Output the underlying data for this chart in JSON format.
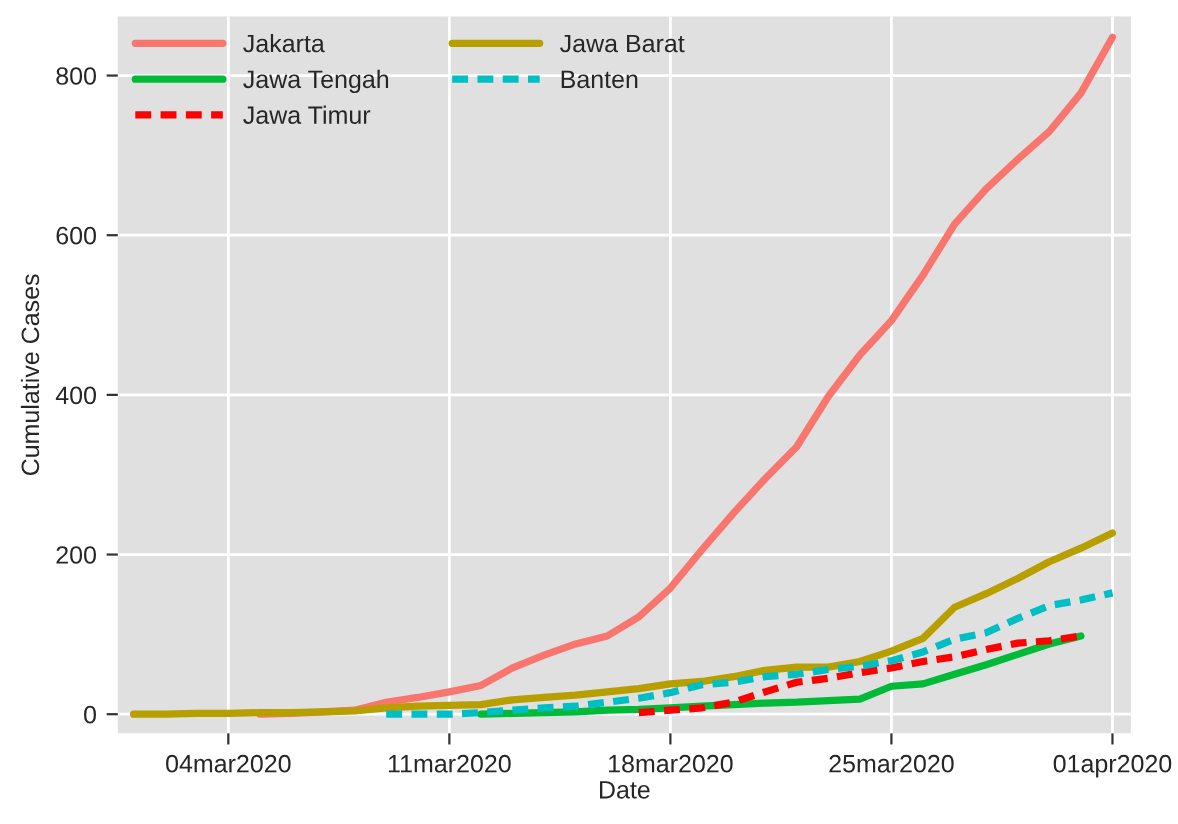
{
  "chart_data": {
    "type": "line",
    "xlabel": "Date",
    "ylabel": "Cumulative Cases",
    "xlim": [
      "2020-02-29T12:00",
      "2020-04-01T14:00"
    ],
    "ylim": [
      -24,
      874
    ],
    "xticks": [
      {
        "value": "2020-03-04",
        "label": "04mar2020"
      },
      {
        "value": "2020-03-11",
        "label": "11mar2020"
      },
      {
        "value": "2020-03-18",
        "label": "18mar2020"
      },
      {
        "value": "2020-03-25",
        "label": "25mar2020"
      },
      {
        "value": "2020-04-01",
        "label": "01apr2020"
      }
    ],
    "yticks": [
      0,
      200,
      400,
      600,
      800
    ],
    "grid": true,
    "legend": "top left",
    "series": [
      {
        "name": "Jakarta",
        "color": "#f8766d",
        "line_style": "solid",
        "x": [
          "2020-03-05",
          "2020-03-06",
          "2020-03-07",
          "2020-03-08",
          "2020-03-09",
          "2020-03-10",
          "2020-03-11",
          "2020-03-12",
          "2020-03-13",
          "2020-03-14",
          "2020-03-15",
          "2020-03-16",
          "2020-03-17",
          "2020-03-18",
          "2020-03-19",
          "2020-03-20",
          "2020-03-21",
          "2020-03-22",
          "2020-03-23",
          "2020-03-24",
          "2020-03-25",
          "2020-03-26",
          "2020-03-27",
          "2020-03-28",
          "2020-03-29",
          "2020-03-30",
          "2020-03-31",
          "2020-04-01"
        ],
        "values": [
          0,
          1,
          3,
          5,
          15,
          21,
          28,
          36,
          58,
          74,
          88,
          98,
          122,
          158,
          206,
          252,
          295,
          335,
          398,
          450,
          493,
          550,
          614,
          658,
          695,
          730,
          778,
          848
        ]
      },
      {
        "name": "Jawa Tengah",
        "color": "#00ba38",
        "line_style": "solid",
        "x": [
          "2020-03-12",
          "2020-03-13",
          "2020-03-14",
          "2020-03-15",
          "2020-03-16",
          "2020-03-17",
          "2020-03-18",
          "2020-03-19",
          "2020-03-20",
          "2020-03-21",
          "2020-03-22",
          "2020-03-23",
          "2020-03-24",
          "2020-03-25",
          "2020-03-26",
          "2020-03-27",
          "2020-03-28",
          "2020-03-29",
          "2020-03-30",
          "2020-03-31"
        ],
        "values": [
          0,
          1,
          2,
          3,
          5,
          6,
          8,
          10,
          12,
          14,
          15,
          17,
          19,
          35,
          38,
          50,
          62,
          75,
          88,
          98
        ]
      },
      {
        "name": "Jawa Timur",
        "color": "#ff0000",
        "line_style": "dashed",
        "x": [
          "2020-03-17",
          "2020-03-18",
          "2020-03-19",
          "2020-03-20",
          "2020-03-21",
          "2020-03-22",
          "2020-03-23",
          "2020-03-24",
          "2020-03-25",
          "2020-03-26",
          "2020-03-27",
          "2020-03-28",
          "2020-03-29",
          "2020-03-30",
          "2020-03-31"
        ],
        "values": [
          2,
          5,
          8,
          15,
          28,
          40,
          45,
          52,
          58,
          66,
          72,
          81,
          89,
          92,
          98
        ]
      },
      {
        "name": "Jawa Barat",
        "color": "#b79f00",
        "line_style": "solid",
        "x": [
          "2020-03-01",
          "2020-03-02",
          "2020-03-03",
          "2020-03-04",
          "2020-03-05",
          "2020-03-06",
          "2020-03-07",
          "2020-03-08",
          "2020-03-09",
          "2020-03-10",
          "2020-03-11",
          "2020-03-12",
          "2020-03-13",
          "2020-03-14",
          "2020-03-15",
          "2020-03-16",
          "2020-03-17",
          "2020-03-18",
          "2020-03-19",
          "2020-03-20",
          "2020-03-21",
          "2020-03-22",
          "2020-03-23",
          "2020-03-24",
          "2020-03-25",
          "2020-03-26",
          "2020-03-27",
          "2020-03-28",
          "2020-03-29",
          "2020-03-30",
          "2020-03-31",
          "2020-04-01"
        ],
        "values": [
          0,
          0,
          1,
          1,
          2,
          2,
          3,
          4,
          8,
          10,
          11,
          12,
          18,
          21,
          24,
          28,
          32,
          38,
          41,
          47,
          55,
          59,
          59,
          66,
          79,
          95,
          134,
          151,
          170,
          191,
          208,
          227
        ]
      },
      {
        "name": "Banten",
        "color": "#00bfc4",
        "line_style": "dashed",
        "x": [
          "2020-03-09",
          "2020-03-10",
          "2020-03-11",
          "2020-03-12",
          "2020-03-13",
          "2020-03-14",
          "2020-03-15",
          "2020-03-16",
          "2020-03-17",
          "2020-03-18",
          "2020-03-19",
          "2020-03-20",
          "2020-03-21",
          "2020-03-22",
          "2020-03-23",
          "2020-03-24",
          "2020-03-25",
          "2020-03-26",
          "2020-03-27",
          "2020-03-28",
          "2020-03-29",
          "2020-03-30",
          "2020-03-31",
          "2020-04-01"
        ],
        "values": [
          0,
          0,
          0,
          2,
          5,
          8,
          10,
          15,
          20,
          27,
          37,
          40,
          47,
          50,
          56,
          60,
          67,
          78,
          94,
          102,
          120,
          136,
          143,
          152
        ]
      }
    ]
  }
}
